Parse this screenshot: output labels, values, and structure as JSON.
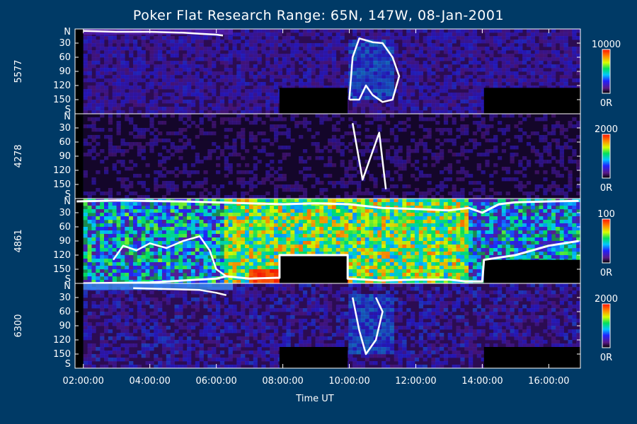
{
  "chart_data": {
    "type": "heatmap",
    "title": "Poker Flat Research Range: 65N, 147W, 08-Jan-2001",
    "xlabel": "Time UT",
    "x_range_hours": [
      1.75,
      16.95
    ],
    "x_ticks": [
      "02:00:00",
      "04:00:00",
      "06:00:00",
      "08:00:00",
      "10:00:00",
      "12:00:00",
      "14:00:00",
      "16:00:00"
    ],
    "x_tick_hours": [
      2,
      4,
      6,
      8,
      10,
      12,
      14,
      16
    ],
    "y_range_deg": [
      0,
      180
    ],
    "y_tick_labels": [
      "N",
      "30",
      "60",
      "90",
      "120",
      "150",
      "S"
    ],
    "y_tick_values": [
      0,
      30,
      60,
      90,
      120,
      150,
      180
    ],
    "panels": [
      {
        "name": "5577",
        "colorbar_max": "10000",
        "colorbar_min": "0R",
        "intensity": 0.18,
        "noise": 0.25,
        "base_color": "#2c0c52",
        "missing": [
          [
            7.9,
            9.95,
            125,
            180
          ],
          [
            14.05,
            16.95,
            125,
            180
          ]
        ],
        "bright_band": {
          "t_start": 1.75,
          "t_end": 6.5,
          "deg_from": 0,
          "deg_to": 12
        },
        "white_trace": [
          [
            2.0,
            4
          ],
          [
            3.0,
            6
          ],
          [
            4.0,
            6
          ],
          [
            5.0,
            8
          ],
          [
            5.5,
            10
          ],
          [
            6.0,
            12
          ],
          [
            6.2,
            14
          ]
        ],
        "white_trace_2": [
          [
            10.0,
            150
          ],
          [
            10.1,
            60
          ],
          [
            10.3,
            20
          ],
          [
            10.7,
            28
          ],
          [
            11.0,
            30
          ],
          [
            11.3,
            60
          ],
          [
            11.5,
            100
          ],
          [
            11.3,
            150
          ],
          [
            11.0,
            155
          ],
          [
            10.7,
            140
          ],
          [
            10.5,
            120
          ],
          [
            10.3,
            150
          ],
          [
            10.0,
            150
          ]
        ]
      },
      {
        "name": "4278",
        "colorbar_max": "2000",
        "colorbar_min": "0R",
        "intensity": 0.08,
        "noise": 0.3,
        "base_color": "#14062a",
        "missing": [],
        "white_trace": [
          [
            10.1,
            20
          ],
          [
            10.2,
            60
          ],
          [
            10.3,
            100
          ],
          [
            10.4,
            140
          ],
          [
            10.9,
            40
          ],
          [
            11.0,
            100
          ],
          [
            11.1,
            160
          ]
        ]
      },
      {
        "name": "4861",
        "colorbar_max": "100",
        "colorbar_min": "0R",
        "intensity": 0.6,
        "noise": 0.9,
        "base_color": "#1a8a50",
        "missing": [
          [
            7.9,
            9.95,
            120,
            180
          ],
          [
            14.05,
            16.95,
            130,
            180
          ]
        ],
        "upper_trace": [
          [
            1.8,
            6
          ],
          [
            3.0,
            4
          ],
          [
            5.0,
            6
          ],
          [
            7.0,
            10
          ],
          [
            8.0,
            12
          ],
          [
            9.0,
            10
          ],
          [
            10.0,
            12
          ],
          [
            11.0,
            20
          ],
          [
            12.0,
            22
          ],
          [
            13.0,
            25
          ],
          [
            13.6,
            20
          ],
          [
            14.0,
            30
          ],
          [
            14.5,
            12
          ],
          [
            15.0,
            8
          ],
          [
            16.0,
            6
          ],
          [
            16.9,
            5
          ]
        ],
        "lower_trace": [
          [
            2.0,
            180
          ],
          [
            4.0,
            178
          ],
          [
            6.0,
            170
          ],
          [
            6.3,
            165
          ],
          [
            7.0,
            170
          ],
          [
            7.9,
            168
          ],
          [
            7.9,
            120
          ],
          [
            9.95,
            120
          ],
          [
            9.95,
            170
          ],
          [
            11.0,
            174
          ],
          [
            12.0,
            172
          ],
          [
            13.0,
            172
          ],
          [
            13.5,
            176
          ],
          [
            14.0,
            176
          ],
          [
            14.05,
            130
          ],
          [
            15.0,
            120
          ],
          [
            16.0,
            100
          ],
          [
            16.9,
            90
          ]
        ],
        "white_trace": [
          [
            2.9,
            130
          ],
          [
            3.2,
            100
          ],
          [
            3.6,
            110
          ],
          [
            4.0,
            95
          ],
          [
            4.5,
            105
          ],
          [
            5.0,
            90
          ],
          [
            5.5,
            80
          ],
          [
            5.8,
            110
          ],
          [
            6.0,
            150
          ],
          [
            6.3,
            165
          ]
        ]
      },
      {
        "name": "6300",
        "colorbar_max": "2000",
        "colorbar_min": "0R",
        "intensity": 0.16,
        "noise": 0.35,
        "base_color": "#2c0c52",
        "missing": [
          [
            7.9,
            9.95,
            135,
            180
          ],
          [
            14.05,
            16.95,
            135,
            180
          ]
        ],
        "bright_band": {
          "t_start": 1.75,
          "t_end": 6.5,
          "deg_from": 0,
          "deg_to": 14
        },
        "white_trace": [
          [
            3.5,
            10
          ],
          [
            4.5,
            12
          ],
          [
            5.5,
            14
          ],
          [
            6.0,
            20
          ],
          [
            6.3,
            25
          ]
        ],
        "white_trace_2": [
          [
            10.1,
            30
          ],
          [
            10.3,
            100
          ],
          [
            10.5,
            150
          ],
          [
            10.8,
            120
          ],
          [
            11.0,
            60
          ],
          [
            10.8,
            30
          ]
        ]
      }
    ]
  }
}
